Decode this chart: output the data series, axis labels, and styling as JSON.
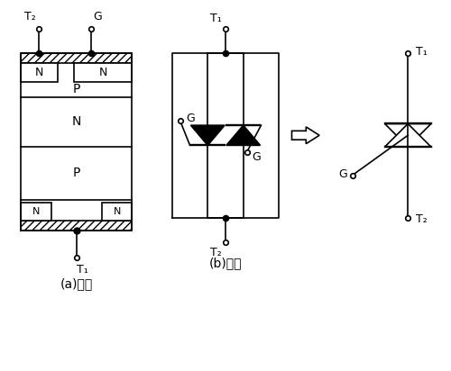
{
  "background": "#ffffff",
  "label_a": "(a)结构",
  "label_b": "(b)电路",
  "T1": "T₁",
  "T2": "T₂",
  "G": "G"
}
